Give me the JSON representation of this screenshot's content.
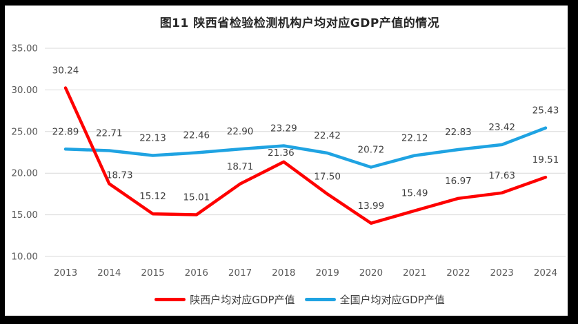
{
  "chart_data": {
    "type": "line",
    "title": "图11  陕西省检验检测机构户均对应GDP产值的情况",
    "categories": [
      "2013",
      "2014",
      "2015",
      "2016",
      "2017",
      "2018",
      "2019",
      "2020",
      "2021",
      "2022",
      "2023",
      "2024"
    ],
    "series": [
      {
        "id": "shaanxi",
        "name": "陕西户均对应GDP产值",
        "color": "#FE0000",
        "values": [
          30.24,
          18.73,
          15.12,
          15.01,
          18.71,
          21.36,
          17.5,
          13.99,
          15.49,
          16.97,
          17.63,
          19.51
        ]
      },
      {
        "id": "national",
        "name": "全国户均对应GDP产值",
        "color": "#1FA3E2",
        "values": [
          22.89,
          22.71,
          22.13,
          22.46,
          22.9,
          23.29,
          22.42,
          20.72,
          22.12,
          22.83,
          23.42,
          25.43
        ]
      }
    ],
    "ylim": [
      10,
      35
    ],
    "ytick_step": 5,
    "ytick_labels": [
      "10.00",
      "15.00",
      "20.00",
      "25.00",
      "30.00",
      "35.00"
    ],
    "xlabel": "",
    "ylabel": "",
    "grid": true,
    "data_labels": true,
    "data_label_decimals": "2",
    "legend_position": "bottom",
    "gridline_color": "#D9D9D9",
    "axis_text_color": "#595959",
    "data_label_color": "#3F3F3F",
    "background_color": "#FFFFFF",
    "frame_color": "#000000"
  }
}
